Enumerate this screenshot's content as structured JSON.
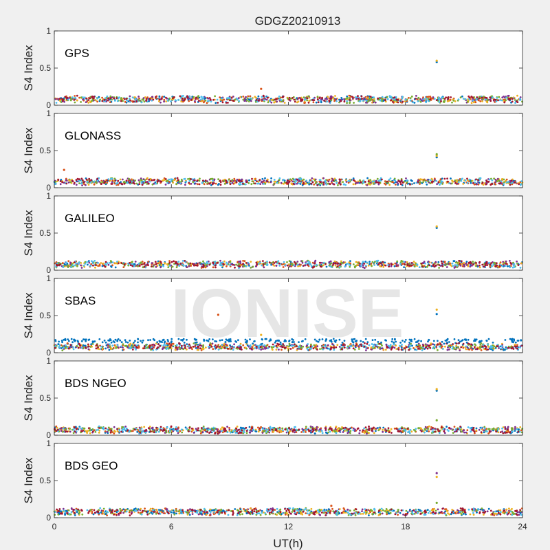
{
  "figure": {
    "title": "GDGZ20210913",
    "xlabel": "UT(h)",
    "watermark": "IONISE",
    "background_color": "#f0f0f0",
    "axes_color": "#ffffff"
  },
  "chart_data": [
    {
      "type": "scatter",
      "panel_label": "GPS",
      "ylabel": "S4 Index",
      "xlim": [
        0,
        24
      ],
      "ylim": [
        0,
        1
      ],
      "x_ticks": [
        0,
        6,
        12,
        18,
        24
      ],
      "y_ticks": [
        0,
        0.5,
        1
      ],
      "y_tick_labels": [
        "0",
        "0.5",
        "1"
      ],
      "baseline": 0.08,
      "spikes": [
        {
          "x": 19.6,
          "y": [
            0.58,
            0.6
          ]
        },
        {
          "x": 10.6,
          "y": [
            0.22
          ]
        }
      ],
      "series_colors": [
        "#0072BD",
        "#D95319",
        "#EDB120",
        "#7E2F8E",
        "#77AC30",
        "#4DBEEE",
        "#A2142F"
      ]
    },
    {
      "type": "scatter",
      "panel_label": "GLONASS",
      "ylabel": "S4 Index",
      "xlim": [
        0,
        24
      ],
      "ylim": [
        0,
        1
      ],
      "x_ticks": [
        0,
        6,
        12,
        18,
        24
      ],
      "y_ticks": [
        0,
        0.5,
        1
      ],
      "y_tick_labels": [
        "0",
        "0.5",
        "1"
      ],
      "baseline": 0.08,
      "spikes": [
        {
          "x": 19.6,
          "y": [
            0.41,
            0.43,
            0.45
          ]
        },
        {
          "x": 0.5,
          "y": [
            0.24
          ]
        }
      ],
      "series_colors": [
        "#0072BD",
        "#D95319",
        "#EDB120",
        "#7E2F8E",
        "#77AC30",
        "#4DBEEE",
        "#A2142F"
      ]
    },
    {
      "type": "scatter",
      "panel_label": "GALILEO",
      "ylabel": "S4 Index",
      "xlim": [
        0,
        24
      ],
      "ylim": [
        0,
        1
      ],
      "x_ticks": [
        0,
        6,
        12,
        18,
        24
      ],
      "y_ticks": [
        0,
        0.5,
        1
      ],
      "y_tick_labels": [
        "0",
        "0.5",
        "1"
      ],
      "baseline": 0.08,
      "spikes": [
        {
          "x": 19.6,
          "y": [
            0.57,
            0.59
          ]
        }
      ],
      "series_colors": [
        "#0072BD",
        "#D95319",
        "#EDB120",
        "#7E2F8E",
        "#77AC30",
        "#4DBEEE",
        "#A2142F"
      ]
    },
    {
      "type": "scatter",
      "panel_label": "SBAS",
      "ylabel": "S4 Index",
      "xlim": [
        0,
        24
      ],
      "ylim": [
        0,
        1
      ],
      "x_ticks": [
        0,
        6,
        12,
        18,
        24
      ],
      "y_ticks": [
        0,
        0.5,
        1
      ],
      "y_tick_labels": [
        "0",
        "0.5",
        "1"
      ],
      "baseline": 0.08,
      "upper_band": 0.16,
      "spikes": [
        {
          "x": 19.6,
          "y": [
            0.52,
            0.58
          ]
        },
        {
          "x": 8.4,
          "y": [
            0.51
          ]
        },
        {
          "x": 10.6,
          "y": [
            0.24
          ]
        }
      ],
      "series_colors": [
        "#0072BD",
        "#D95319",
        "#EDB120",
        "#7E2F8E",
        "#77AC30",
        "#4DBEEE",
        "#A2142F"
      ]
    },
    {
      "type": "scatter",
      "panel_label": "BDS NGEO",
      "ylabel": "S4 Index",
      "xlim": [
        0,
        24
      ],
      "ylim": [
        0,
        1
      ],
      "x_ticks": [
        0,
        6,
        12,
        18,
        24
      ],
      "y_ticks": [
        0,
        0.5,
        1
      ],
      "y_tick_labels": [
        "0",
        "0.5",
        "1"
      ],
      "baseline": 0.07,
      "spikes": [
        {
          "x": 19.6,
          "y": [
            0.6,
            0.62,
            0.2
          ]
        }
      ],
      "series_colors": [
        "#0072BD",
        "#D95319",
        "#EDB120",
        "#7E2F8E",
        "#77AC30",
        "#4DBEEE",
        "#A2142F"
      ]
    },
    {
      "type": "scatter",
      "panel_label": "BDS GEO",
      "ylabel": "S4 Index",
      "xlim": [
        0,
        24
      ],
      "ylim": [
        0,
        1
      ],
      "x_ticks": [
        0,
        6,
        12,
        18,
        24
      ],
      "y_ticks": [
        0,
        0.5,
        1
      ],
      "y_tick_labels": [
        "0",
        "0.5",
        "1"
      ],
      "baseline": 0.08,
      "spikes": [
        {
          "x": 19.6,
          "y": [
            0.6,
            0.55,
            0.2
          ]
        },
        {
          "x": 14.2,
          "y": [
            0.16
          ]
        }
      ],
      "series_colors": [
        "#7E2F8E",
        "#D95319",
        "#EDB120",
        "#0072BD",
        "#77AC30",
        "#4DBEEE",
        "#A2142F"
      ]
    }
  ]
}
